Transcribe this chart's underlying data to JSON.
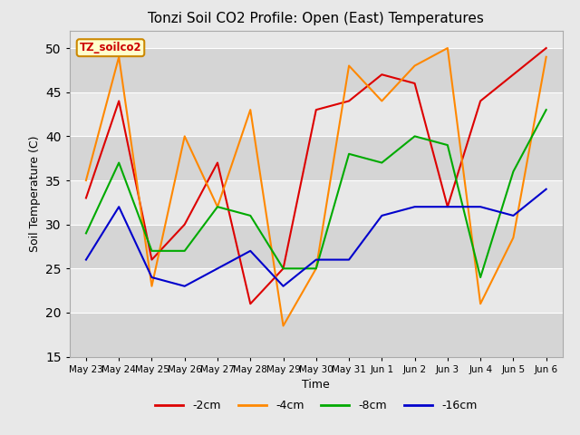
{
  "title": "Tonzi Soil CO2 Profile: Open (East) Temperatures",
  "xlabel": "Time",
  "ylabel": "Soil Temperature (C)",
  "ylim": [
    15,
    52
  ],
  "yticks": [
    15,
    20,
    25,
    30,
    35,
    40,
    45,
    50
  ],
  "x_labels": [
    "May 23",
    "May 24",
    "May 25",
    "May 26",
    "May 27",
    "May 28",
    "May 29",
    "May 30",
    "May 31",
    "Jun 1",
    "Jun 2",
    "Jun 3",
    "Jun 4",
    "Jun 5",
    "Jun 6"
  ],
  "series_2cm": [
    33,
    44,
    26,
    30,
    37,
    21,
    25,
    43,
    44,
    47,
    46,
    32,
    44,
    47,
    50
  ],
  "series_4cm": [
    35,
    49,
    23,
    40,
    32,
    43,
    18.5,
    25,
    48,
    44,
    48,
    50,
    21,
    28.5,
    49
  ],
  "series_8cm": [
    29,
    37,
    27,
    27,
    32,
    31,
    25,
    25,
    38,
    37,
    40,
    39,
    24,
    36,
    43
  ],
  "series_16cm": [
    26,
    32,
    24,
    23,
    25,
    27,
    23,
    26,
    26,
    31,
    32,
    32,
    32,
    31,
    34
  ],
  "color_2cm": "#dd0000",
  "color_4cm": "#ff8800",
  "color_8cm": "#00aa00",
  "color_16cm": "#0000cc",
  "band_dark": "#d5d5d5",
  "band_light": "#e8e8e8",
  "fig_bg": "#e8e8e8",
  "annotation_text": "TZ_soilco2",
  "annotation_fg": "#cc0000",
  "annotation_bg": "#ffffcc",
  "annotation_edge": "#cc8800"
}
